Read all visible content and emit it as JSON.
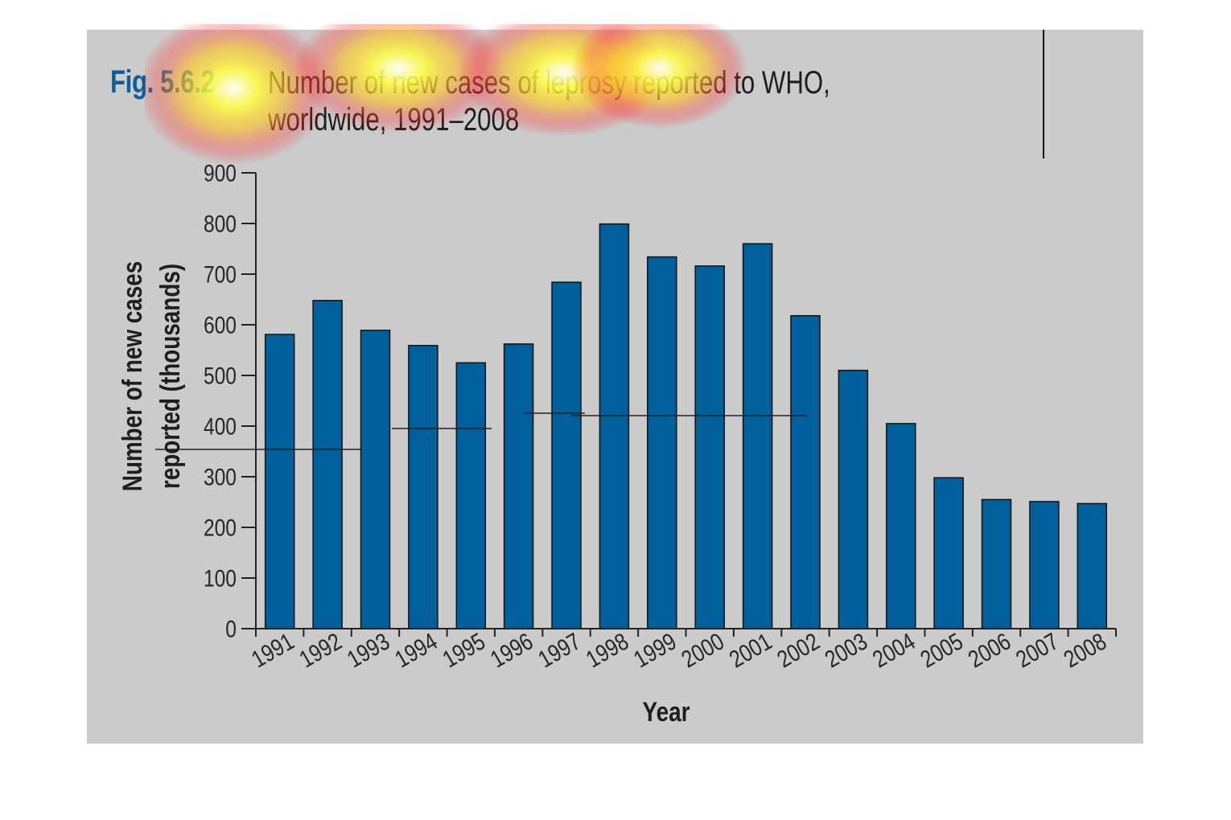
{
  "figure": {
    "label": "Fig. 5.6.2",
    "caption_line1": "Number of new cases of leprosy reported to WHO,",
    "caption_line2": "worldwide, 1991–2008"
  },
  "colors": {
    "panel": "#cbcbcb",
    "bar": "#00609c",
    "label_blue": "#0d5f98",
    "text": "#1e1e1e"
  },
  "chart_data": {
    "type": "bar",
    "title": "Number of new cases of leprosy reported to WHO, worldwide, 1991–2008",
    "xlabel": "Year",
    "ylabel_line1": "Number of new cases",
    "ylabel_line2": "reported (thousands)",
    "ylim": [
      0,
      900
    ],
    "yticks": [
      0,
      100,
      200,
      300,
      400,
      500,
      600,
      700,
      800,
      900
    ],
    "grid": false,
    "legend": "none",
    "categories": [
      "1991",
      "1992",
      "1993",
      "1994",
      "1995",
      "1996",
      "1997",
      "1998",
      "1999",
      "2000",
      "2001",
      "2002",
      "2003",
      "2004",
      "2005",
      "2006",
      "2007",
      "2008"
    ],
    "series": [
      {
        "values": [
          581,
          648,
          589,
          559,
          525,
          562,
          684,
          799,
          734,
          716,
          760,
          618,
          510,
          405,
          298,
          255,
          251,
          247
        ]
      }
    ]
  }
}
